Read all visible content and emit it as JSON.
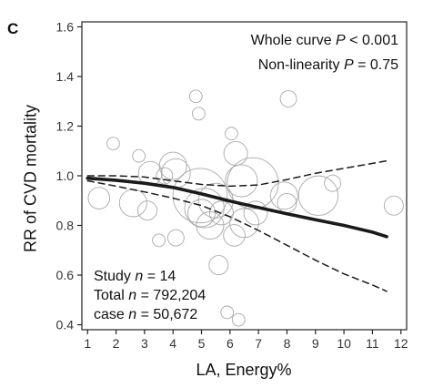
{
  "panel_label": "C",
  "colors": {
    "axis": "#222222",
    "bubble": "#a9a9a9",
    "curve": "#1a1a1a"
  },
  "annotations": {
    "whole_curve_prefix": "Whole curve ",
    "whole_curve_p": "P",
    "whole_curve_value": " < 0.001",
    "nonlin_prefix": "Non-linearity ",
    "nonlin_p": "P",
    "nonlin_value": " = 0.75",
    "study_prefix": "Study ",
    "study_n": "n",
    "study_value": " = 14",
    "total_prefix": "Total ",
    "total_n": "n",
    "total_value": " = 792,204",
    "case_prefix": "case ",
    "case_n": "n",
    "case_value": " = 50,672"
  },
  "chart_data": {
    "type": "line",
    "title": "",
    "xlabel": "LA, Energy%",
    "ylabel": "RR of CVD mortality",
    "xlim": [
      0.8,
      12.2
    ],
    "ylim": [
      0.38,
      1.62
    ],
    "xticks": [
      1,
      2,
      3,
      4,
      5,
      6,
      7,
      8,
      9,
      10,
      11,
      12
    ],
    "yticks": [
      0.4,
      0.6,
      0.8,
      1.0,
      1.2,
      1.4,
      1.6
    ],
    "ytick_labels": [
      "0.4",
      "0.6",
      "0.8",
      "1.0",
      "1.2",
      "1.4",
      "1.6"
    ],
    "grid": false,
    "series": [
      {
        "style": "solid",
        "x": [
          1,
          2,
          3,
          4,
          5,
          6,
          7,
          8,
          9,
          10,
          11,
          11.5
        ],
        "y": [
          0.99,
          0.982,
          0.97,
          0.953,
          0.927,
          0.898,
          0.872,
          0.847,
          0.823,
          0.8,
          0.773,
          0.755
        ]
      },
      {
        "style": "dashed",
        "x": [
          1,
          2,
          3,
          4,
          5,
          6,
          7,
          8,
          9,
          10,
          11,
          11.5
        ],
        "y": [
          1.0,
          1.0,
          0.995,
          0.98,
          0.965,
          0.958,
          0.963,
          0.985,
          1.01,
          1.03,
          1.05,
          1.06
        ]
      },
      {
        "style": "dashed",
        "x": [
          1,
          2,
          3,
          4,
          5,
          6,
          7,
          8,
          9,
          10,
          11,
          11.5
        ],
        "y": [
          0.98,
          0.958,
          0.935,
          0.91,
          0.88,
          0.835,
          0.78,
          0.72,
          0.66,
          0.605,
          0.56,
          0.535
        ]
      }
    ],
    "bubbles": [
      {
        "x": 1.4,
        "y": 0.91,
        "size": 0.2
      },
      {
        "x": 1.9,
        "y": 1.13,
        "size": 0.05
      },
      {
        "x": 2.8,
        "y": 1.08,
        "size": 0.05
      },
      {
        "x": 2.6,
        "y": 0.89,
        "size": 0.35
      },
      {
        "x": 3.1,
        "y": 0.86,
        "size": 0.15
      },
      {
        "x": 3.2,
        "y": 1.01,
        "size": 0.25
      },
      {
        "x": 3.5,
        "y": 0.74,
        "size": 0.05
      },
      {
        "x": 3.7,
        "y": 1.0,
        "size": 0.1
      },
      {
        "x": 4.1,
        "y": 0.75,
        "size": 0.1
      },
      {
        "x": 4.0,
        "y": 1.04,
        "size": 0.35
      },
      {
        "x": 4.1,
        "y": 1.01,
        "size": 0.4
      },
      {
        "x": 4.8,
        "y": 1.32,
        "size": 0.05
      },
      {
        "x": 4.9,
        "y": 1.25,
        "size": 0.05
      },
      {
        "x": 4.95,
        "y": 0.92,
        "size": 1.6
      },
      {
        "x": 5.1,
        "y": 0.87,
        "size": 0.8
      },
      {
        "x": 5.0,
        "y": 0.85,
        "size": 0.35
      },
      {
        "x": 5.3,
        "y": 0.8,
        "size": 0.35
      },
      {
        "x": 5.5,
        "y": 0.9,
        "size": 0.6
      },
      {
        "x": 5.6,
        "y": 0.64,
        "size": 0.15
      },
      {
        "x": 5.7,
        "y": 0.85,
        "size": 0.25
      },
      {
        "x": 6.05,
        "y": 1.17,
        "size": 0.05
      },
      {
        "x": 6.2,
        "y": 1.09,
        "size": 0.25
      },
      {
        "x": 6.15,
        "y": 0.76,
        "size": 0.2
      },
      {
        "x": 6.4,
        "y": 0.98,
        "size": 0.5
      },
      {
        "x": 6.8,
        "y": 0.97,
        "size": 1.4
      },
      {
        "x": 6.5,
        "y": 0.81,
        "size": 0.4
      },
      {
        "x": 6.9,
        "y": 0.85,
        "size": 0.25
      },
      {
        "x": 7.9,
        "y": 0.92,
        "size": 0.35
      },
      {
        "x": 8.05,
        "y": 1.31,
        "size": 0.1
      },
      {
        "x": 8.0,
        "y": 0.89,
        "size": 0.15
      },
      {
        "x": 9.1,
        "y": 0.92,
        "size": 0.8
      },
      {
        "x": 9.6,
        "y": 0.97,
        "size": 0.1
      },
      {
        "x": 11.75,
        "y": 0.88,
        "size": 0.15
      },
      {
        "x": 5.9,
        "y": 0.45,
        "size": 0.05
      },
      {
        "x": 6.3,
        "y": 0.42,
        "size": 0.05
      }
    ]
  }
}
